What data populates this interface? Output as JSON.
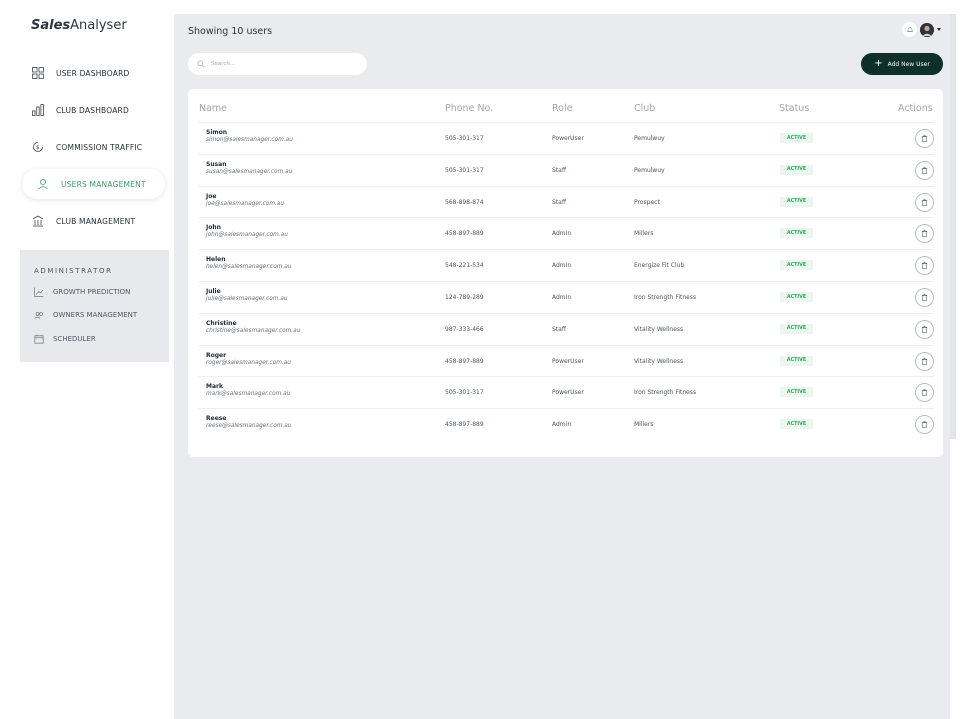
{
  "brand": {
    "bold": "Sales",
    "rest": "Analyser"
  },
  "sidebar": {
    "items": [
      {
        "label": "USER DASHBOARD",
        "icon": "grid-icon"
      },
      {
        "label": "CLUB DASHBOARD",
        "icon": "bar-chart-icon"
      },
      {
        "label": "COMMISSION TRAFFIC",
        "icon": "dollar-cycle-icon"
      },
      {
        "label": "USERS MANAGEMENT",
        "icon": "user-icon",
        "active": true
      },
      {
        "label": "CLUB MANAGEMENT",
        "icon": "building-icon"
      }
    ],
    "admin": {
      "title": "ADMINISTRATOR",
      "items": [
        {
          "label": "GROWTH PREDICTION",
          "icon": "trend-icon"
        },
        {
          "label": "OWNERS MANAGEMENT",
          "icon": "users-icon"
        },
        {
          "label": "SCHEDULER",
          "icon": "calendar-icon"
        }
      ]
    }
  },
  "header": {
    "showing": "Showing 10 users",
    "search_placeholder": "Search...",
    "add_button": "Add New User"
  },
  "table": {
    "columns": [
      "Name",
      "Phone No.",
      "Role",
      "Club",
      "Status",
      "Actions"
    ],
    "rows": [
      {
        "name": "Simon",
        "email": "simon@salesmanager.com.au",
        "phone": "505-301-317",
        "role": "PowerUser",
        "club": "Pemulwuy",
        "status": "ACTIVE"
      },
      {
        "name": "Susan",
        "email": "susan@salesmanager.com.au",
        "phone": "505-301-317",
        "role": "Staff",
        "club": "Pemulwuy",
        "status": "ACTIVE"
      },
      {
        "name": "Joe",
        "email": "joe@salesmanager.com.au",
        "phone": "568-898-874",
        "role": "Staff",
        "club": "Prospect",
        "status": "ACTIVE"
      },
      {
        "name": "John",
        "email": "john@salesmanager.com.au",
        "phone": "458-897-889",
        "role": "Admin",
        "club": "Millers",
        "status": "ACTIVE"
      },
      {
        "name": "Helen",
        "email": "helen@salesmanager.com.au",
        "phone": "548-221-534",
        "role": "Admin",
        "club": "Energize Fit Club",
        "status": "ACTIVE"
      },
      {
        "name": "Julie",
        "email": "julie@salesmanager.com.au",
        "phone": "124-789-289",
        "role": "Admin",
        "club": "Iron Strength Fitness",
        "status": "ACTIVE"
      },
      {
        "name": "Christine",
        "email": "christine@salesmanager.com.au",
        "phone": "987-333-466",
        "role": "Staff",
        "club": "Vitality Wellness",
        "status": "ACTIVE"
      },
      {
        "name": "Roger",
        "email": "roger@salesmanager.com.au",
        "phone": "458-897-889",
        "role": "PowerUser",
        "club": "Vitality Wellness",
        "status": "ACTIVE"
      },
      {
        "name": "Mark",
        "email": "mark@salesmanager.com.au",
        "phone": "505-301-317",
        "role": "PowerUser",
        "club": "Iron Strength Fitness",
        "status": "ACTIVE"
      },
      {
        "name": "Reese",
        "email": "reese@salesmanager.com.au",
        "phone": "458-897-889",
        "role": "Admin",
        "club": "Millers",
        "status": "ACTIVE"
      }
    ]
  },
  "colors": {
    "accent": "#3f9a6a",
    "button": "#0e2f2a",
    "status_bg": "#eaf7ef",
    "status_text": "#3da563"
  }
}
